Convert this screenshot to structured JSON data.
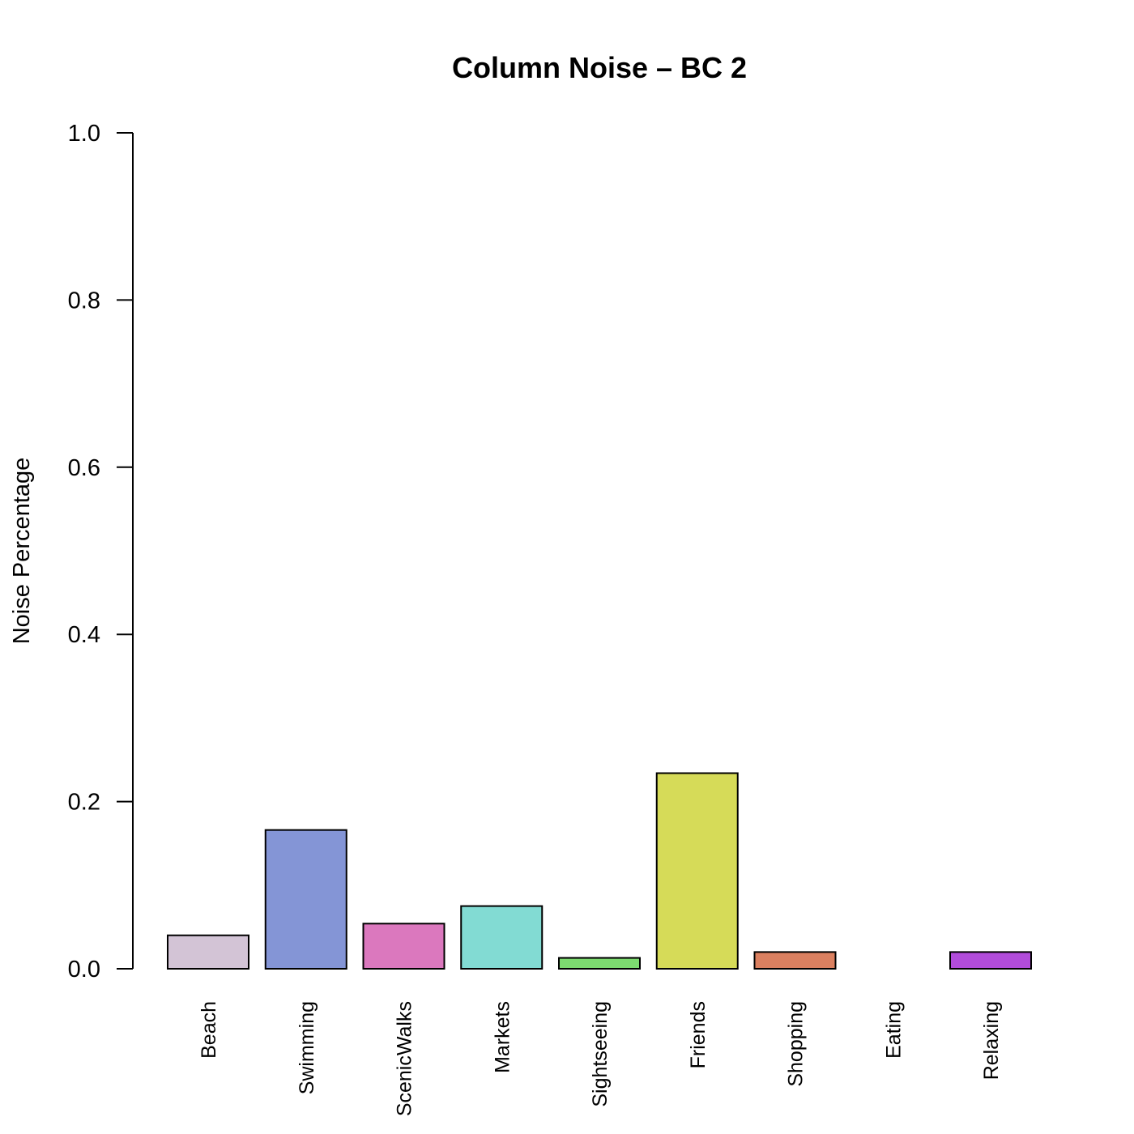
{
  "chart_data": {
    "type": "bar",
    "title": "Column Noise – BC 2",
    "xlabel": "",
    "ylabel": "Noise Percentage",
    "ylim": [
      0,
      1
    ],
    "yticks": [
      "0.0",
      "0.2",
      "0.4",
      "0.6",
      "0.8",
      "1.0"
    ],
    "categories": [
      "Beach",
      "Swimming",
      "ScenicWalks",
      "Markets",
      "Sightseeing",
      "Friends",
      "Shopping",
      "Eating",
      "Relaxing"
    ],
    "values": [
      0.04,
      0.166,
      0.054,
      0.075,
      0.013,
      0.234,
      0.02,
      0.0,
      0.02
    ],
    "colors": [
      "#d3c4d6",
      "#8495d6",
      "#db78be",
      "#82dbd3",
      "#7ddb70",
      "#d6db58",
      "#db8060",
      "#d3b0d6",
      "#b24cdb"
    ],
    "grid": false,
    "legend": "none"
  }
}
